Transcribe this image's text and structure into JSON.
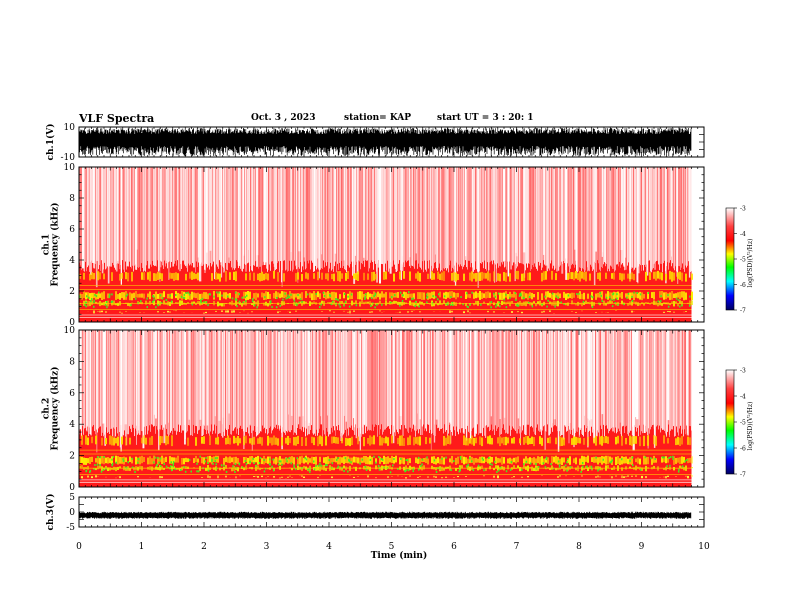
{
  "header": {
    "title": "VLF Spectra",
    "date": "Oct. 3 , 2023",
    "station": "station= KAP",
    "start": "start UT = 3 : 20: 1"
  },
  "chart_data": [
    {
      "type": "line",
      "name": "ch1-waveform",
      "ylabel": "ch.1(V)",
      "ylim": [
        -10,
        10
      ],
      "y_ticks": [
        "10",
        "-10"
      ]
    },
    {
      "type": "heatmap",
      "name": "ch1-spectrogram",
      "ylabel": "ch.1\nFrequency (kHz)",
      "ylim": [
        0,
        10
      ],
      "y_ticks": [
        "0",
        "2",
        "4",
        "6",
        "8",
        "10"
      ],
      "colorbar": {
        "label": "log(PSD)(V²/Hz)",
        "range": [
          -7,
          -3
        ],
        "ticks": [
          "-3",
          "-4",
          "-5",
          "-6",
          "-7"
        ]
      }
    },
    {
      "type": "heatmap",
      "name": "ch2-spectrogram",
      "ylabel": "ch.2\nFrequency (kHz)",
      "ylim": [
        0,
        10
      ],
      "y_ticks": [
        "0",
        "2",
        "4",
        "6",
        "8",
        "10"
      ],
      "colorbar": {
        "label": "log(PSD)(V²/Hz)",
        "range": [
          -7,
          -3
        ],
        "ticks": [
          "-3",
          "-4",
          "-5",
          "-6",
          "-7"
        ]
      }
    },
    {
      "type": "line",
      "name": "ch3-waveform",
      "ylabel": "ch.3(V)",
      "ylim": [
        -5,
        5
      ],
      "y_ticks": [
        "5",
        "0",
        "-5"
      ]
    }
  ],
  "x_axis": {
    "label": "Time (min)",
    "range": [
      0,
      10
    ],
    "ticks": [
      "0",
      "1",
      "2",
      "3",
      "4",
      "5",
      "6",
      "7",
      "8",
      "9",
      "10"
    ],
    "data_end": 9.8
  },
  "colors": {
    "spectrogram_background": "#ff0000",
    "colormap": [
      "#000080",
      "#0000ff",
      "#00ffff",
      "#00ff00",
      "#ffff00",
      "#ff0000",
      "#ffffff"
    ]
  }
}
